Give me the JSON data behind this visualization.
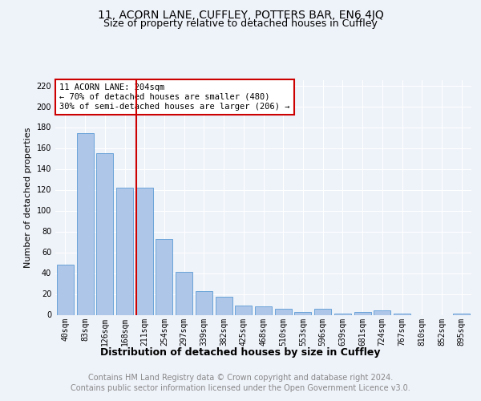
{
  "title": "11, ACORN LANE, CUFFLEY, POTTERS BAR, EN6 4JQ",
  "subtitle": "Size of property relative to detached houses in Cuffley",
  "xlabel": "Distribution of detached houses by size in Cuffley",
  "ylabel": "Number of detached properties",
  "categories": [
    "40sqm",
    "83sqm",
    "126sqm",
    "168sqm",
    "211sqm",
    "254sqm",
    "297sqm",
    "339sqm",
    "382sqm",
    "425sqm",
    "468sqm",
    "510sqm",
    "553sqm",
    "596sqm",
    "639sqm",
    "681sqm",
    "724sqm",
    "767sqm",
    "810sqm",
    "852sqm",
    "895sqm"
  ],
  "values": [
    48,
    174,
    155,
    122,
    122,
    73,
    41,
    23,
    17,
    9,
    8,
    6,
    3,
    6,
    1,
    3,
    4,
    1,
    0,
    0,
    1
  ],
  "bar_color": "#aec6e8",
  "bar_edge_color": "#5b9bd5",
  "vline_color": "#cc0000",
  "vline_x": 3.57,
  "annotation_title": "11 ACORN LANE: 204sqm",
  "annotation_line1": "← 70% of detached houses are smaller (480)",
  "annotation_line2": "30% of semi-detached houses are larger (206) →",
  "annotation_box_edge": "#cc0000",
  "ylim": [
    0,
    225
  ],
  "yticks": [
    0,
    20,
    40,
    60,
    80,
    100,
    120,
    140,
    160,
    180,
    200,
    220
  ],
  "footer1": "Contains HM Land Registry data © Crown copyright and database right 2024.",
  "footer2": "Contains public sector information licensed under the Open Government Licence v3.0.",
  "bg_color": "#eef2f9",
  "plot_bg_color": "#eef2f9",
  "grid_color": "#ffffff",
  "title_fontsize": 10,
  "subtitle_fontsize": 9,
  "xlabel_fontsize": 9,
  "ylabel_fontsize": 8,
  "tick_fontsize": 7,
  "annot_fontsize": 7.5,
  "footer_fontsize": 7
}
